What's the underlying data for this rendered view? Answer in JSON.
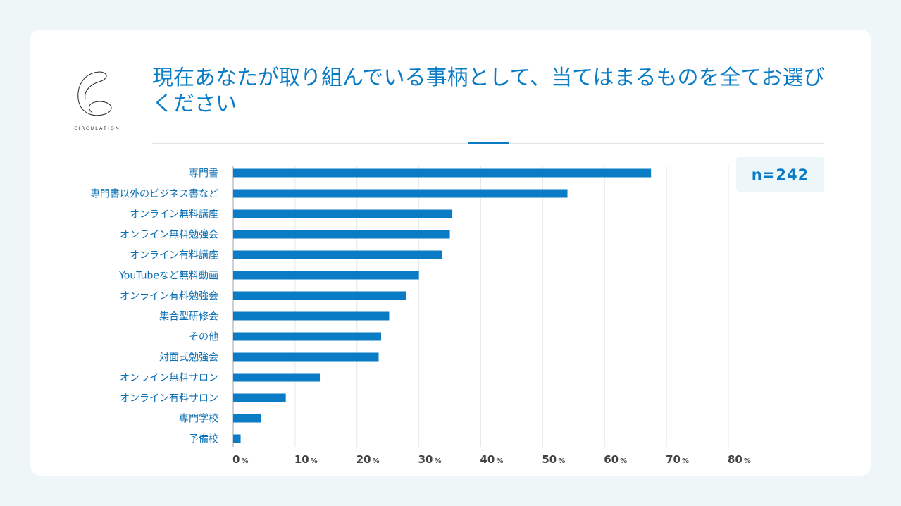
{
  "brand": {
    "name": "CIRCULATION"
  },
  "header": {
    "title": "現在あなたが取り組んでいる事柄として、当てはまるものを全てお選びください"
  },
  "sample": {
    "label": "n=242"
  },
  "colors": {
    "bar": "#0a7bc5",
    "title": "#0a7bc5",
    "label": "#0a6fb3",
    "grid": "#e3e8ec"
  },
  "chart_data": {
    "type": "bar",
    "orientation": "horizontal",
    "title": "現在あなたが取り組んでいる事柄として、当てはまるものを全てお選びください",
    "categories": [
      "専門書",
      "専門書以外のビジネス書など",
      "オンライン無料講座",
      "オンライン無料勉強会",
      "オンライン有料講座",
      "YouTubeなど無料動画",
      "オンライン有料勉強会",
      "集合型研修会",
      "その他",
      "対面式勉強会",
      "オンライン無料サロン",
      "オンライン有料サロン",
      "専門学校",
      "予備校"
    ],
    "values": [
      67.5,
      54.0,
      35.4,
      35.0,
      33.7,
      30.0,
      28.0,
      25.2,
      23.9,
      23.5,
      14.0,
      8.5,
      4.5,
      1.2
    ],
    "xlim": [
      0,
      80
    ],
    "xticks": [
      0,
      10,
      20,
      30,
      40,
      50,
      60,
      70,
      80
    ],
    "tick_suffix": "%",
    "xlabel": "",
    "ylabel": "",
    "grid": true
  }
}
